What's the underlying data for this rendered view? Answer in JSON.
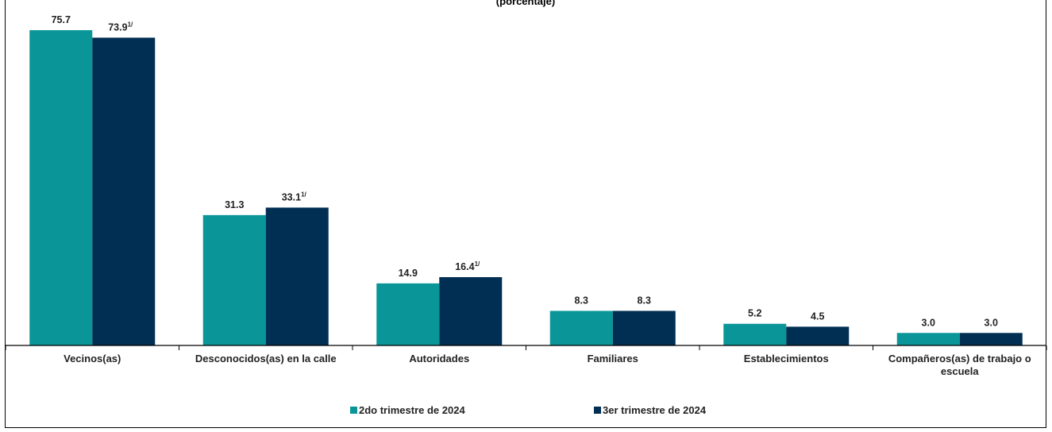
{
  "colors": {
    "series_1": "#0a9698",
    "series_2": "#002f53",
    "axis": "#000000",
    "text": "#222222"
  },
  "chart_data": {
    "type": "bar",
    "title": "(porcentaje)",
    "categories": [
      [
        "Vecinos(as)"
      ],
      [
        "Desconocidos(as) en la calle"
      ],
      [
        "Autoridades"
      ],
      [
        "Familiares"
      ],
      [
        "Establecimientos"
      ],
      [
        "Compañeros(as) de trabajo o",
        "escuela"
      ]
    ],
    "series": [
      {
        "name": "2do trimestre de 2024",
        "values": [
          75.7,
          31.3,
          14.9,
          8.3,
          5.2,
          3.0
        ],
        "labels": [
          "75.7",
          "31.3",
          "14.9",
          "8.3",
          "5.2",
          "3.0"
        ],
        "notes": [
          "",
          "",
          "",
          "",
          "",
          ""
        ]
      },
      {
        "name": "3er trimestre de 2024",
        "values": [
          73.9,
          33.1,
          16.4,
          8.3,
          4.5,
          3.0
        ],
        "labels": [
          "73.9",
          "33.1",
          "16.4",
          "8.3",
          "4.5",
          "3.0"
        ],
        "notes": [
          "1/",
          "1/",
          "1/",
          "",
          "",
          ""
        ]
      }
    ],
    "ylim": [
      0,
      80
    ],
    "grid": false,
    "legend": "bottom-center",
    "xlabel": "",
    "ylabel": ""
  }
}
